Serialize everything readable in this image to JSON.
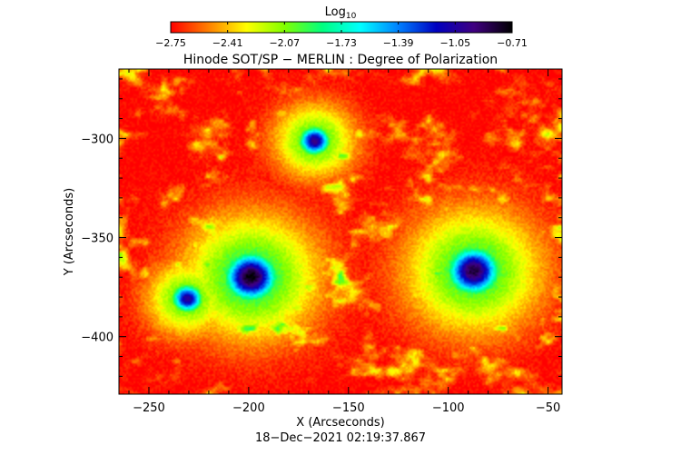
{
  "colorbar": {
    "label": "Log",
    "label_subscript": "10",
    "tick_labels": [
      "-2.75",
      "-2.41",
      "-2.07",
      "-1.73",
      "-1.39",
      "-1.05",
      "-0.71"
    ],
    "colormap": [
      "#ff0000",
      "#ff8000",
      "#ffff00",
      "#80ff00",
      "#00ff80",
      "#00ffff",
      "#0080ff",
      "#0000c0",
      "#400080",
      "#000000"
    ]
  },
  "chart_data": {
    "type": "heatmap",
    "title": "Hinode SOT/SP − MERLIN : Degree of Polarization",
    "xlabel": "X (Arcseconds)",
    "ylabel": "Y (Arcseconds)",
    "xlim": [
      -265,
      -43
    ],
    "ylim": [
      -429,
      -265
    ],
    "xticks": [
      -250,
      -200,
      -150,
      -100,
      -50
    ],
    "xtick_labels": [
      "−250",
      "−200",
      "−150",
      "−100",
      "−50"
    ],
    "yticks": [
      -300,
      -350,
      -400
    ],
    "ytick_labels": [
      "−300",
      "−350",
      "−400"
    ],
    "color_range": [
      -2.75,
      -0.71
    ],
    "features": [
      {
        "name": "sunspot-left",
        "x": -199,
        "y": -370,
        "peak": -0.71
      },
      {
        "name": "sunspot-right",
        "x": -87,
        "y": -367,
        "peak": -0.8
      },
      {
        "name": "pore-upper",
        "x": -167,
        "y": -301,
        "peak": -0.95
      },
      {
        "name": "pore-lower-left",
        "x": -231,
        "y": -381,
        "peak": -1.0
      }
    ]
  },
  "timestamp": "18−Dec−2021 02:19:37.867"
}
